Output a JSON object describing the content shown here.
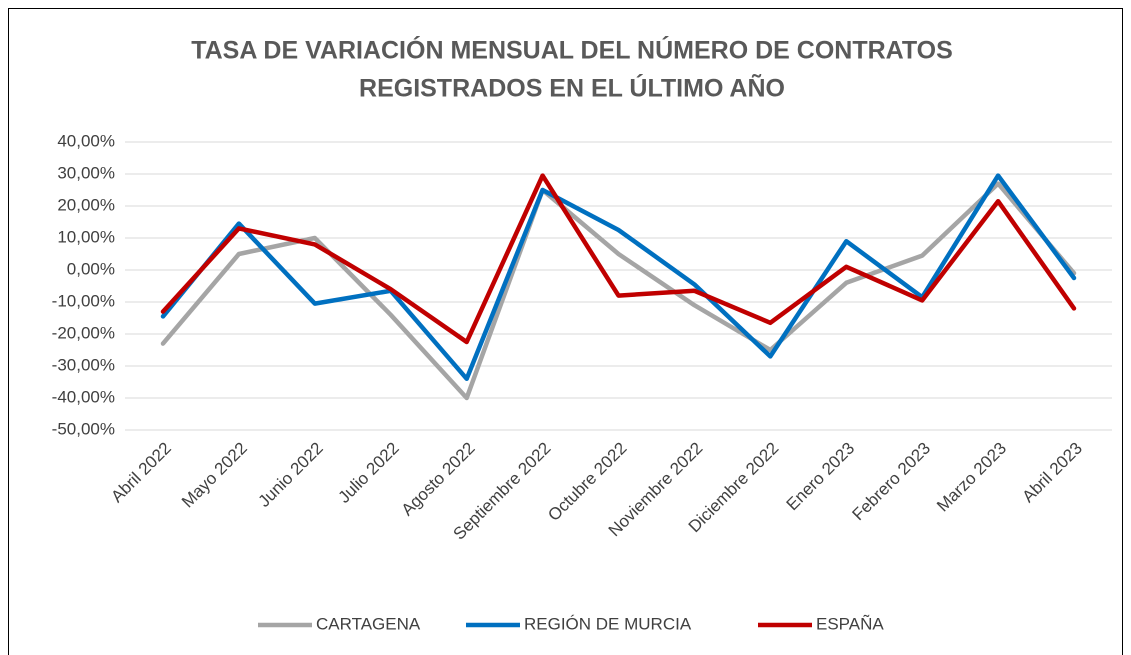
{
  "chart_data": {
    "type": "line",
    "title": [
      "TASA DE VARIACIÓN MENSUAL DEL NÚMERO DE CONTRATOS",
      "REGISTRADOS EN EL ÚLTIMO AÑO"
    ],
    "categories": [
      "Abril 2022",
      "Mayo 2022",
      "Junio 2022",
      "Julio 2022",
      "Agosto 2022",
      "Septiembre 2022",
      "Octubre 2022",
      "Noviembre 2022",
      "Diciembre 2022",
      "Enero 2023",
      "Febrero 2023",
      "Marzo 2023",
      "Abril 2023"
    ],
    "series": [
      {
        "name": "CARTAGENA",
        "color": "#a5a5a5",
        "values": [
          -23,
          5,
          10,
          -14,
          -40,
          25,
          5,
          -11,
          -25,
          -4,
          4.5,
          27,
          -1
        ]
      },
      {
        "name": "REGIÓN DE MURCIA",
        "color": "#0070c0",
        "values": [
          -14.5,
          14.5,
          -10.5,
          -6.5,
          -34,
          25,
          12.5,
          -4.5,
          -27,
          9,
          -8.5,
          29.5,
          -2.5
        ]
      },
      {
        "name": "ESPAÑA",
        "color": "#c00000",
        "values": [
          -13,
          13,
          8,
          -6,
          -22.5,
          29.5,
          -8,
          -6.5,
          -16.5,
          1,
          -9.5,
          21.5,
          -12
        ]
      }
    ],
    "ylim": [
      -50,
      40
    ],
    "yticks": [
      {
        "value": -50,
        "label": "-50,00%"
      },
      {
        "value": -40,
        "label": "-40,00%"
      },
      {
        "value": -30,
        "label": "-30,00%"
      },
      {
        "value": -20,
        "label": "-20,00%"
      },
      {
        "value": -10,
        "label": "-10,00%"
      },
      {
        "value": 0,
        "label": "0,00%"
      },
      {
        "value": 10,
        "label": "10,00%"
      },
      {
        "value": 20,
        "label": "20,00%"
      },
      {
        "value": 30,
        "label": "30,00%"
      },
      {
        "value": 40,
        "label": "40,00%"
      }
    ],
    "grid": true,
    "legend": "bottom"
  }
}
